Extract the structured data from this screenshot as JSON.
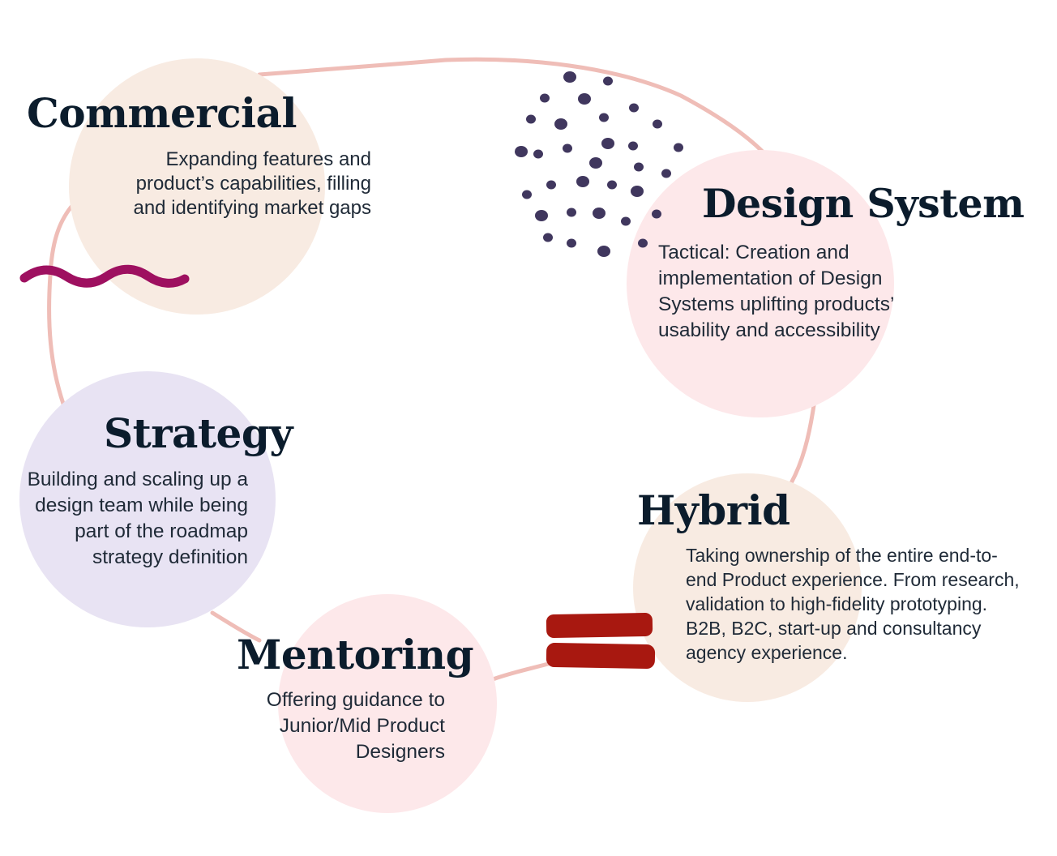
{
  "nodes": {
    "commercial": {
      "title": "Commercial",
      "description": "Expanding features and\nproduct’s capabilities, filling\nand identifying market gaps",
      "color": "#f8ebe2"
    },
    "design_system": {
      "title": "Design System",
      "description": "Tactical: Creation and\nimplementation of Design\nSystems uplifting products’\nusability and accessibility",
      "color": "#fde8ea"
    },
    "strategy": {
      "title": "Strategy",
      "description": "Building and scaling up a\ndesign team while being\npart of the roadmap\nstrategy definition",
      "color": "#e8e3f3"
    },
    "hybrid": {
      "title": "Hybrid",
      "description": "Taking ownership of the entire end-to-\nend Product experience. From research,\nvalidation to high-fidelity prototyping.\nB2B, B2C, start-up and consultancy\nagency experience.",
      "color": "#f8ebe2"
    },
    "mentoring": {
      "title": "Mentoring",
      "description": "Offering guidance to\nJunior/Mid Product\nDesigners",
      "color": "#fde8ea"
    }
  },
  "ornaments": {
    "loop_color": "#efbdb7",
    "squiggle_color": "#9e1060",
    "dots_color": "#40375e",
    "stripes_color": "#a81810"
  }
}
